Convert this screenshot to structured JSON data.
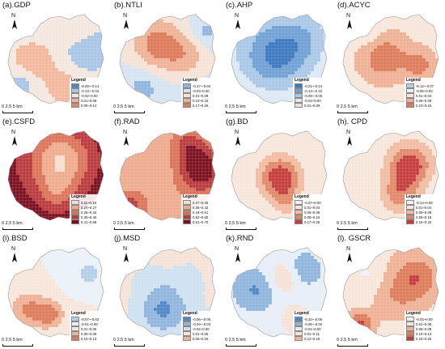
{
  "figure": {
    "scale_label": "0 2.5 5 km",
    "north_label": "N",
    "legend_title": "Legend"
  },
  "panels": [
    {
      "title": "(a).GDP",
      "scheme": "div",
      "classes": [
        "-0.28~-0.14",
        "-0.13~-0.03",
        "-0.02~0.00",
        "0.01~0.08",
        "0.09~0.14"
      ],
      "colors": [
        "#4f86c6",
        "#a7c6e6",
        "#f4e7df",
        "#f2b79a",
        "#dc8a68"
      ]
    },
    {
      "title": "(b).NTLI",
      "scheme": "div",
      "classes": [
        "-0.17~-0.04",
        "-0.03~0.00",
        "0.01~0.09",
        "0.10~0.16",
        "0.17~0.25"
      ],
      "colors": [
        "#8fb5dd",
        "#d6e4f2",
        "#f6e2d6",
        "#efb295",
        "#dd7a58"
      ]
    },
    {
      "title": "(c).AHP",
      "scheme": "div",
      "classes": [
        "-0.21~-0.14",
        "-0.13~-0.10",
        "-0.09~-0.05",
        "-0.04~0.00",
        "0.01~0.09"
      ],
      "colors": [
        "#3b78bf",
        "#6f9fd3",
        "#a9c7e7",
        "#dce8f4",
        "#f6ddcf"
      ]
    },
    {
      "title": "(d).ACYC",
      "scheme": "div",
      "classes": [
        "-0.12~-0.07",
        "-0.06~0.00",
        "0.01~0.04",
        "0.05~0.09",
        "0.10~0.15"
      ],
      "colors": [
        "#b3cde9",
        "#eaf1f8",
        "#f8e6db",
        "#efb193",
        "#dd7b59"
      ]
    },
    {
      "title": "(e).CSFD",
      "scheme": "red",
      "classes": [
        "0.11~0.19",
        "0.20~0.27",
        "0.28~0.34",
        "0.35~0.40",
        "0.41~0.58"
      ],
      "colors": [
        "#f6dccf",
        "#eeaa8d",
        "#db7258",
        "#b9393c",
        "#7a0e1e"
      ]
    },
    {
      "title": "(f).RAD",
      "scheme": "red",
      "classes": [
        "0.27~0.35",
        "0.36~0.43",
        "0.44~0.51",
        "0.52~0.60",
        "0.61~0.70"
      ],
      "colors": [
        "#f6dccf",
        "#eeaa8d",
        "#db7258",
        "#b9393c",
        "#7a0e1e"
      ]
    },
    {
      "title": "(g).BD",
      "scheme": "div",
      "classes": [
        "-0.07~0.00",
        "0.01~0.04",
        "0.05~0.08",
        "0.09~0.16",
        "0.17~0.25"
      ],
      "colors": [
        "#eef3f8",
        "#f8e6db",
        "#f1bca2",
        "#e08868",
        "#c43b3b"
      ]
    },
    {
      "title": "(h). CPD",
      "scheme": "div",
      "classes": [
        "-0.14~0.00",
        "0.01~0.04",
        "0.05~0.08",
        "0.09~0.15",
        "0.16~0.22"
      ],
      "colors": [
        "#eef3f8",
        "#f8e6db",
        "#f1bca2",
        "#e08868",
        "#c43b3b"
      ]
    },
    {
      "title": "(i).BSD",
      "scheme": "div",
      "classes": [
        "-0.07~-0.02",
        "-0.01~0.00",
        "0.01~0.05",
        "0.06~0.09",
        "0.10~0.13"
      ],
      "colors": [
        "#b3cde9",
        "#eaf1f8",
        "#f8e6db",
        "#efb193",
        "#dd7b59"
      ]
    },
    {
      "title": "(j).MSD",
      "scheme": "div",
      "classes": [
        "-0.06~-0.05",
        "-0.04~-0.03",
        "-0.02~0.00",
        "0.01~0.05",
        "0.06~0.15"
      ],
      "colors": [
        "#4f86c6",
        "#8fb5dd",
        "#cfe0f0",
        "#f6e2d6",
        "#eeb49a"
      ]
    },
    {
      "title": "(k).RND",
      "scheme": "div",
      "classes": [
        "-0.10~-0.06",
        "-0.05~-0.02",
        "-0.01~0.00",
        "0.01~0.11",
        "0.12~0.19"
      ],
      "colors": [
        "#4f86c6",
        "#8fb5dd",
        "#e6eef7",
        "#f6e2d6",
        "#eeb49a"
      ]
    },
    {
      "title": "(l). GSCR",
      "scheme": "div",
      "classes": [
        "-0.04~0.00",
        "0.01~0.05",
        "0.06~0.09",
        "0.10~0.14",
        "0.15~0.26"
      ],
      "colors": [
        "#eef3f8",
        "#f8e6db",
        "#efb193",
        "#dd7b59",
        "#c43b3b"
      ]
    }
  ]
}
